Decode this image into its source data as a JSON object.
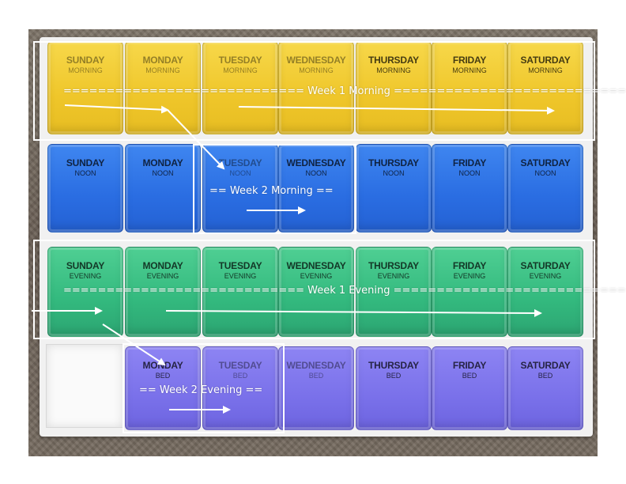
{
  "rows": [
    {
      "color": "yellow",
      "slot": "MORNING",
      "days": [
        "SUNDAY",
        "MONDAY",
        "TUESDAY",
        "WEDNESDAY",
        "THURSDAY",
        "FRIDAY",
        "SATURDAY"
      ]
    },
    {
      "color": "blue",
      "slot": "NOON",
      "days": [
        "SUNDAY",
        "MONDAY",
        "TUESDAY",
        "WEDNESDAY",
        "THURSDAY",
        "FRIDAY",
        "SATURDAY"
      ]
    },
    {
      "color": "green",
      "slot": "EVENING",
      "days": [
        "SUNDAY",
        "MONDAY",
        "TUESDAY",
        "WEDNESDAY",
        "THURSDAY",
        "FRIDAY",
        "SATURDAY"
      ]
    },
    {
      "color": "purple",
      "slot": "BED",
      "days": [
        "MONDAY",
        "TUESDAY",
        "WEDNESDAY",
        "THURSDAY",
        "FRIDAY",
        "SATURDAY"
      ]
    }
  ],
  "annotations": {
    "week1_morning": "============================ Week 1 Morning ===========================",
    "week2_morning": "== Week 2 Morning ==",
    "week1_evening": "============================ Week 1 Evening ===========================",
    "week2_evening": "== Week 2 Evening =="
  },
  "colors": {
    "yellow": "#efc62a",
    "blue": "#2a6de2",
    "green": "#33b97e",
    "purple": "#7a71ea",
    "annotation": "#ffffff"
  }
}
